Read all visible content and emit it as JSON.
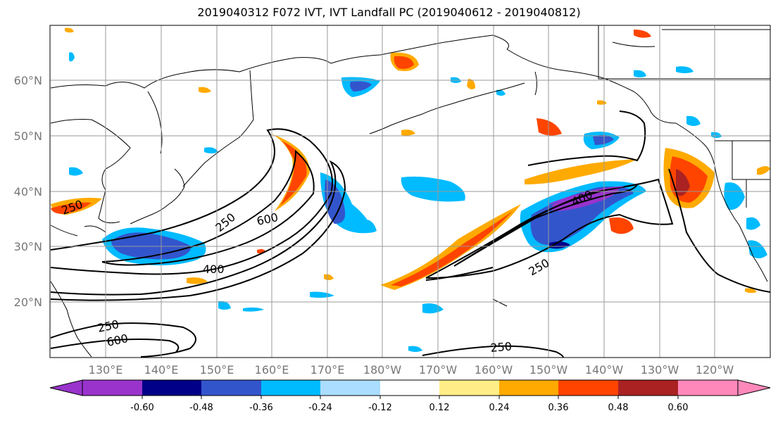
{
  "title": "2019040312 F072 IVT, IVT Landfall PC (2019040612 - 2019040812)",
  "lat_labels": [
    "60°N",
    "50°N",
    "40°N",
    "30°N",
    "20°N"
  ],
  "lon_labels": [
    "130°E",
    "140°E",
    "150°E",
    "160°E",
    "170°E",
    "180°W",
    "170°W",
    "160°W",
    "150°W",
    "140°W",
    "130°W",
    "120°W"
  ],
  "contour_labels": [
    "250",
    "250",
    "600",
    "400",
    "250",
    "600",
    "400",
    "250",
    "250"
  ],
  "colorbar": {
    "colors": [
      "#9933cc",
      "#000088",
      "#3355cc",
      "#00bbff",
      "#aaddff",
      "#ffffff",
      "#ffee88",
      "#ffaa00",
      "#ff4400",
      "#aa2222",
      "#ff88bb"
    ],
    "tick_labels": [
      "-0.60",
      "-0.48",
      "-0.36",
      "-0.24",
      "-0.12",
      "0.12",
      "0.24",
      "0.36",
      "0.48",
      "0.60"
    ],
    "extend": "both"
  },
  "colors": {
    "contour": "#000000",
    "coast": "#000000",
    "grid": "#999999",
    "axis_label": "#777777"
  }
}
